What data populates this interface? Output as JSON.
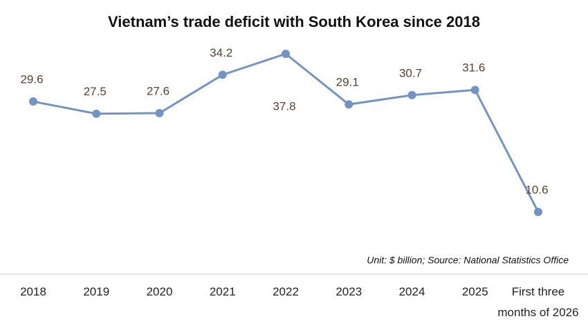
{
  "chart_data": {
    "type": "line",
    "title": "Vietnam’s trade deficit with South Korea since 2018",
    "note": "Unit: $ billion; Source: National Statistics Office",
    "categories": [
      "2018",
      "2019",
      "2020",
      "2021",
      "2022",
      "2023",
      "2024",
      "2025",
      "First three months of 2026"
    ],
    "values": [
      29.6,
      27.5,
      27.6,
      34.2,
      37.8,
      29.1,
      30.7,
      31.6,
      10.6
    ],
    "color": "#7393c4"
  }
}
